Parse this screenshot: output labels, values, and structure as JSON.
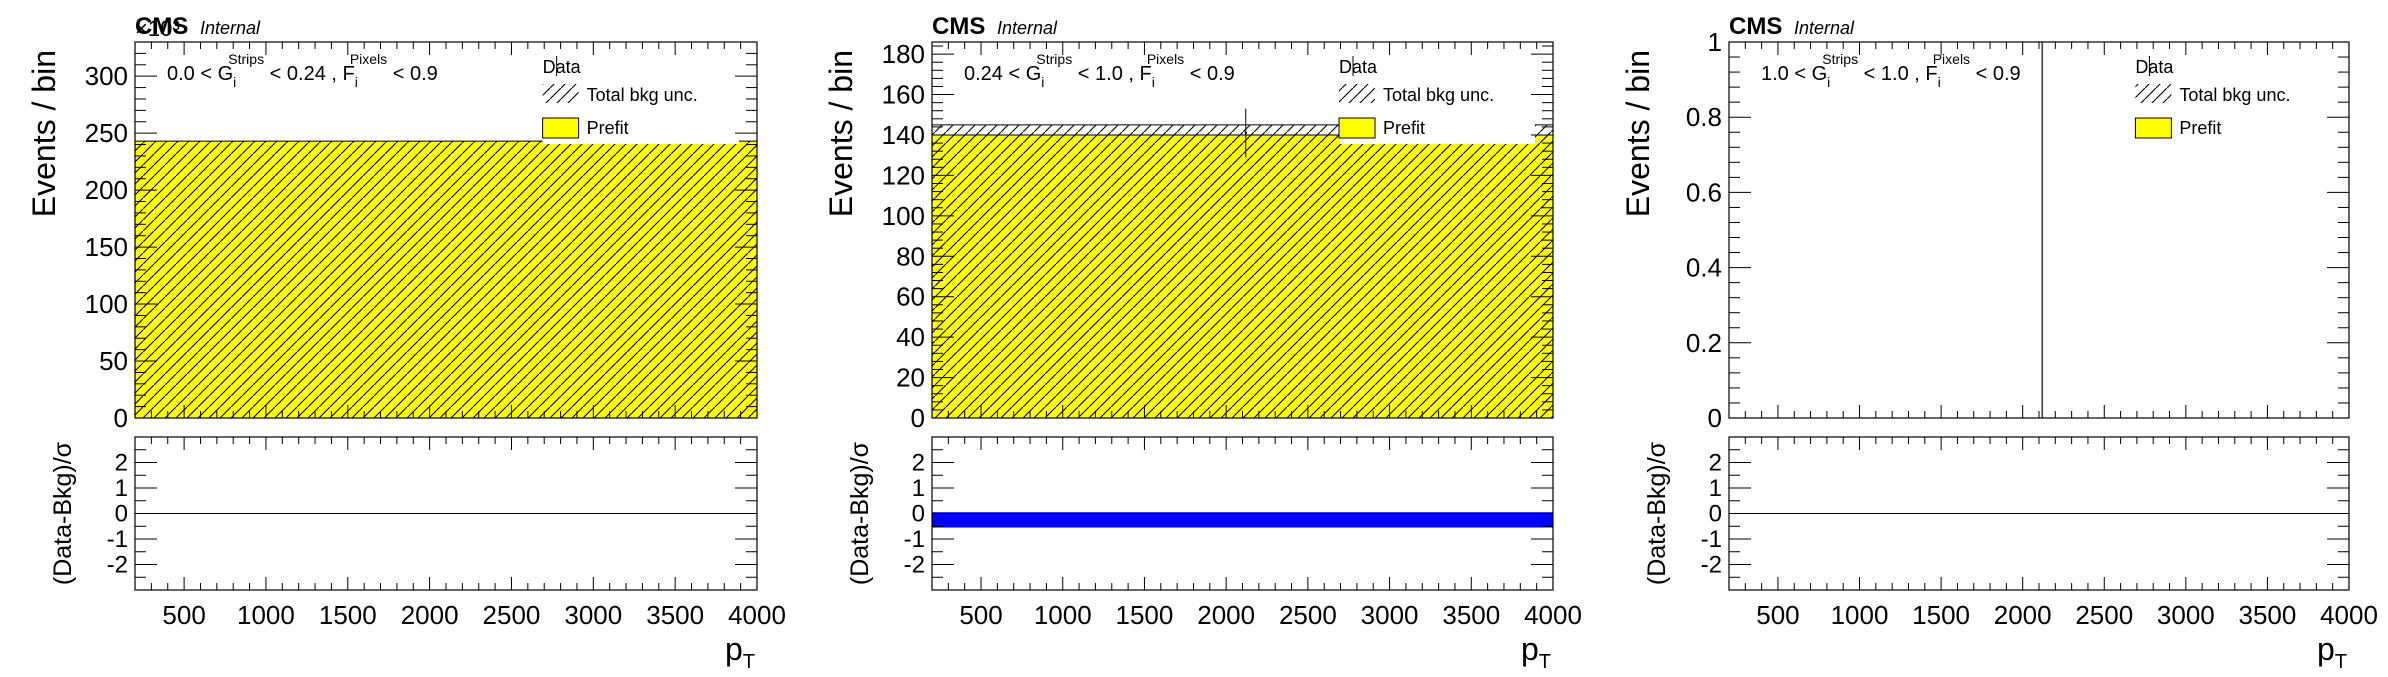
{
  "chart_data": [
    {
      "type": "bar",
      "experiment": "CMS",
      "status": "Internal",
      "selection_text": {
        "lo": "0.0",
        "lt1": " < ",
        "g": "G",
        "g_sub": "i",
        "g_sup": "Strips",
        "lt2": " < 0.24 , ",
        "f": "F",
        "f_sub": "i",
        "f_sup": "Pixels",
        "tail": " < 0.9"
      },
      "exponent_label": "×10³",
      "ylabel": "Events / bin",
      "ratio_ylabel": "(Data-Bkg)/σ",
      "xlabel": "p",
      "xlabel_sub": "T",
      "xlim": [
        200,
        4000
      ],
      "xticks": [
        500,
        1000,
        1500,
        2000,
        2500,
        3000,
        3500,
        4000
      ],
      "ylim": [
        0,
        330
      ],
      "yticks": [
        0,
        50,
        100,
        150,
        200,
        250,
        300
      ],
      "ratio_ylim": [
        -3,
        3
      ],
      "ratio_yticks": [
        -2,
        -1,
        0,
        1,
        2
      ],
      "legend": {
        "data": "Data",
        "unc": "Total bkg unc.",
        "prefit": "Prefit",
        "placement": "top-right"
      },
      "colors": {
        "prefit": "#ffff00",
        "pull_band": "#0000ff"
      },
      "series": [
        {
          "name": "Prefit",
          "x_range": [
            200,
            4000
          ],
          "value": 243,
          "unc": 0
        }
      ],
      "data_points": [],
      "pull": []
    },
    {
      "type": "bar",
      "experiment": "CMS",
      "status": "Internal",
      "selection_text": {
        "lo": "0.24",
        "lt1": " < ",
        "g": "G",
        "g_sub": "i",
        "g_sup": "Strips",
        "lt2": " < 1.0 , ",
        "f": "F",
        "f_sub": "i",
        "f_sup": "Pixels",
        "tail": " < 0.9"
      },
      "exponent_label": "",
      "ylabel": "Events / bin",
      "ratio_ylabel": "(Data-Bkg)/σ",
      "xlabel": "p",
      "xlabel_sub": "T",
      "xlim": [
        200,
        4000
      ],
      "xticks": [
        500,
        1000,
        1500,
        2000,
        2500,
        3000,
        3500,
        4000
      ],
      "ylim": [
        0,
        186
      ],
      "yticks": [
        0,
        20,
        40,
        60,
        80,
        100,
        120,
        140,
        160,
        180
      ],
      "ratio_ylim": [
        -3,
        3
      ],
      "ratio_yticks": [
        -2,
        -1,
        0,
        1,
        2
      ],
      "legend": {
        "data": "Data",
        "unc": "Total bkg unc.",
        "prefit": "Prefit",
        "placement": "top-right"
      },
      "colors": {
        "prefit": "#ffff00",
        "pull_band": "#0000ff"
      },
      "series": [
        {
          "name": "Prefit",
          "x_range": [
            200,
            4000
          ],
          "value": 140,
          "unc": 5
        }
      ],
      "data_points": [
        {
          "x": 2120,
          "y": 141,
          "yerr": 12
        }
      ],
      "pull": [
        {
          "x_range": [
            200,
            4000
          ],
          "value": -0.25,
          "half_width": 0.3
        }
      ]
    },
    {
      "type": "bar",
      "experiment": "CMS",
      "status": "Internal",
      "selection_text": {
        "lo": "1.0",
        "lt1": " < ",
        "g": "G",
        "g_sub": "i",
        "g_sup": "Strips",
        "lt2": " < 1.0 , ",
        "f": "F",
        "f_sub": "i",
        "f_sup": "Pixels",
        "tail": " < 0.9"
      },
      "exponent_label": "",
      "ylabel": "Events / bin",
      "ratio_ylabel": "(Data-Bkg)/σ",
      "xlabel": "p",
      "xlabel_sub": "T",
      "xlim": [
        200,
        4000
      ],
      "xticks": [
        500,
        1000,
        1500,
        2000,
        2500,
        3000,
        3500,
        4000
      ],
      "ylim": [
        0,
        1
      ],
      "yticks": [
        0,
        0.2,
        0.4,
        0.6,
        0.8,
        1
      ],
      "ratio_ylim": [
        -3,
        3
      ],
      "ratio_yticks": [
        -2,
        -1,
        0,
        1,
        2
      ],
      "legend": {
        "data": "Data",
        "unc": "Total bkg unc.",
        "prefit": "Prefit",
        "placement": "top-right"
      },
      "colors": {
        "prefit": "#ffff00",
        "pull_band": "#0000ff"
      },
      "series": [],
      "data_points": [],
      "pull": [],
      "lines": [
        {
          "x": 2120
        }
      ]
    }
  ]
}
